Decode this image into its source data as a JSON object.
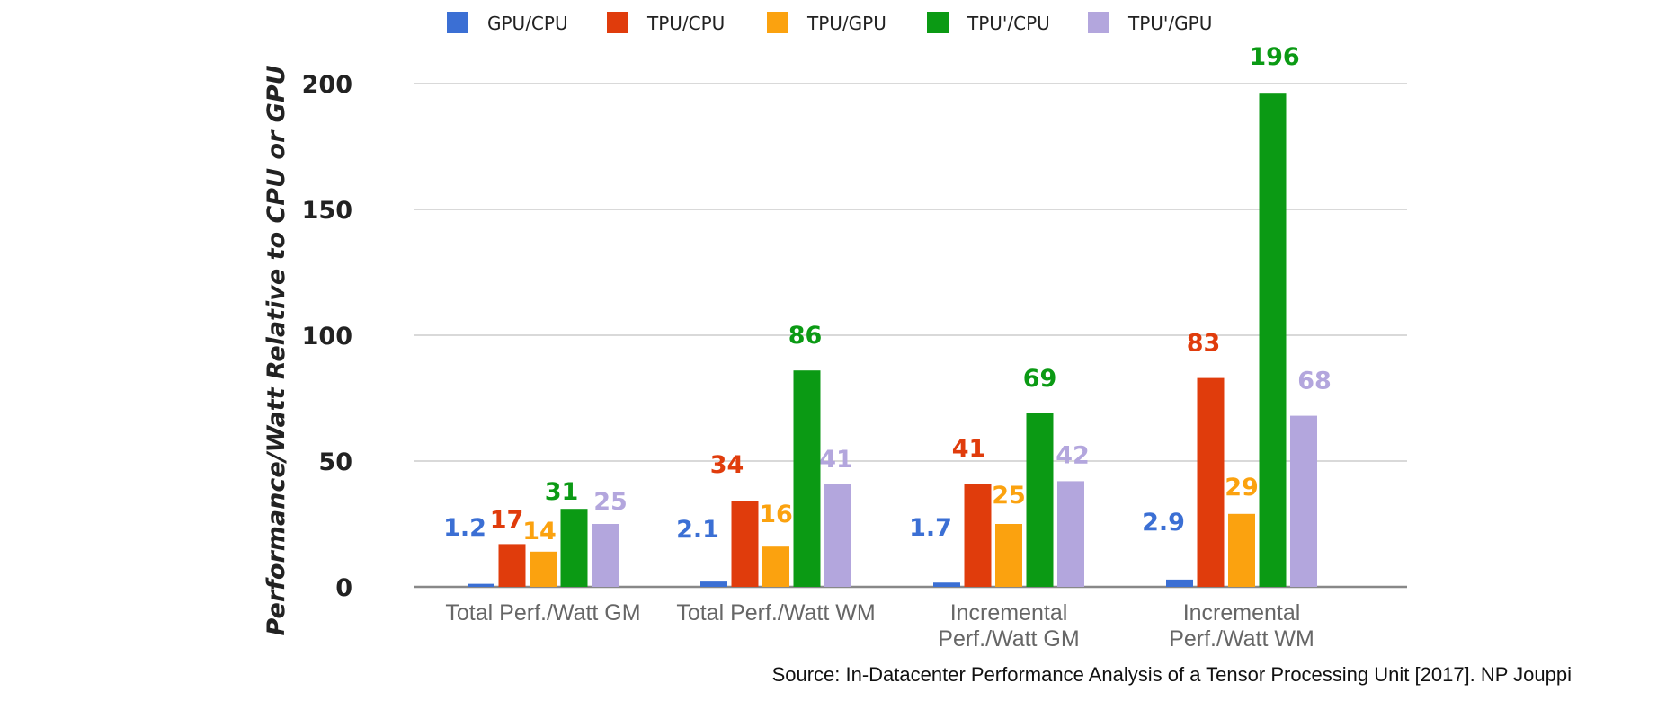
{
  "chart_data": {
    "type": "bar",
    "title": "",
    "xlabel": "",
    "ylabel": "Performance/Watt Relative to CPU or GPU",
    "ylim": [
      0,
      200
    ],
    "yticks": [
      0,
      50,
      100,
      150,
      200
    ],
    "grid": true,
    "legend_position": "top",
    "categories": [
      "Total Perf./Watt GM",
      "Total Perf./Watt WM",
      "Incremental Perf./Watt GM",
      "Incremental Perf./Watt WM"
    ],
    "category_lines": [
      [
        "Total Perf./Watt GM"
      ],
      [
        "Total Perf./Watt WM"
      ],
      [
        "Incremental",
        "Perf./Watt GM"
      ],
      [
        "Incremental",
        "Perf./Watt WM"
      ]
    ],
    "series": [
      {
        "name": "GPU/CPU",
        "color": "#3b6fd4",
        "values": [
          1.2,
          2.1,
          1.7,
          2.9
        ],
        "labels": [
          "1.2",
          "2.1",
          "1.7",
          "2.9"
        ]
      },
      {
        "name": "TPU/CPU",
        "color": "#e03c0c",
        "values": [
          17,
          34,
          41,
          83
        ],
        "labels": [
          "17",
          "34",
          "41",
          "83"
        ]
      },
      {
        "name": "TPU/GPU",
        "color": "#fba20f",
        "values": [
          14,
          16,
          25,
          29
        ],
        "labels": [
          "14",
          "16",
          "25",
          "29"
        ]
      },
      {
        "name": "TPU'/CPU",
        "color": "#0b9a14",
        "values": [
          31,
          86,
          69,
          196
        ],
        "labels": [
          "31",
          "86",
          "69",
          "196"
        ]
      },
      {
        "name": "TPU'/GPU",
        "color": "#b3a6dd",
        "values": [
          25,
          41,
          42,
          68
        ],
        "labels": [
          "25",
          "41",
          "42",
          "68"
        ]
      }
    ]
  },
  "source_note": "Source: In-Datacenter Performance Analysis of a Tensor Processing Unit [2017]. NP Jouppi"
}
